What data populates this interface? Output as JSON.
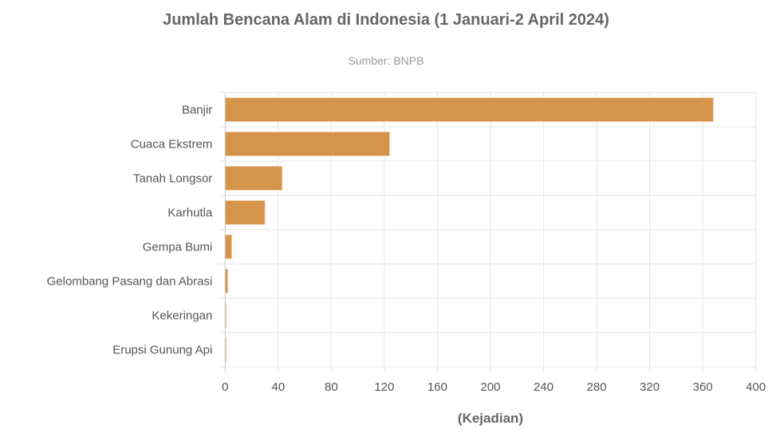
{
  "chart_data": {
    "type": "bar",
    "orientation": "horizontal",
    "title": "Jumlah Bencana Alam di Indonesia (1 Januari-2 April 2024)",
    "subtitle": "Sumber: BNPB",
    "xlabel": "(Kejadian)",
    "ylabel": "",
    "categories": [
      "Banjir",
      "Cuaca Ekstrem",
      "Tanah Longsor",
      "Karhutla",
      "Gempa Bumi",
      "Gelombang Pasang dan Abrasi",
      "Kekeringan",
      "Erupsi Gunung Api"
    ],
    "values": [
      368,
      124,
      43,
      30,
      5,
      2,
      1,
      1
    ],
    "xlim": [
      0,
      400
    ],
    "xticks": [
      "0",
      "40",
      "80",
      "120",
      "160",
      "200",
      "240",
      "280",
      "320",
      "360",
      "400"
    ],
    "grid": true,
    "legend": "none",
    "bar_color": "#d4954a"
  }
}
